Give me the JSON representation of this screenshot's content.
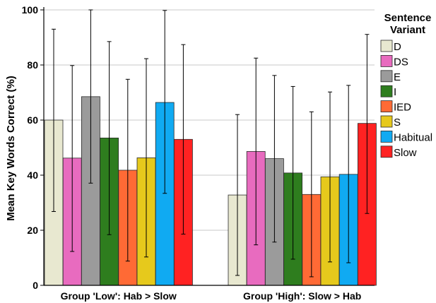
{
  "chart_data": {
    "type": "bar",
    "ylabel": "Mean Key Words Correct (%)",
    "xlabel": "",
    "ylim": [
      0,
      100
    ],
    "yticks": [
      0,
      20,
      40,
      60,
      80,
      100
    ],
    "grid": "horizontal",
    "legend_title": "Sentence Variant",
    "legend_placement": "right",
    "categories": [
      "Group 'Low': Hab > Slow",
      "Group 'High': Slow > Hab"
    ],
    "series": [
      {
        "name": "D",
        "color": "#e8e8d0",
        "values": [
          60.0,
          32.8
        ],
        "error_low": [
          26.8,
          3.6
        ],
        "error_high": [
          93.0,
          62.0
        ]
      },
      {
        "name": "DS",
        "color": "#e86bbf",
        "values": [
          46.2,
          48.6
        ],
        "error_low": [
          12.3,
          14.7
        ],
        "error_high": [
          79.8,
          82.5
        ]
      },
      {
        "name": "E",
        "color": "#9b9b9b",
        "values": [
          68.5,
          46.0
        ],
        "error_low": [
          37.1,
          15.7
        ],
        "error_high": [
          100.0,
          76.2
        ]
      },
      {
        "name": "I",
        "color": "#2e7d1e",
        "values": [
          53.5,
          40.8
        ],
        "error_low": [
          18.4,
          9.5
        ],
        "error_high": [
          88.5,
          72.2
        ]
      },
      {
        "name": "IED",
        "color": "#ff6a35",
        "values": [
          41.8,
          33.0
        ],
        "error_low": [
          8.8,
          3.1
        ],
        "error_high": [
          74.8,
          63.0
        ]
      },
      {
        "name": "S",
        "color": "#e6c91c",
        "values": [
          46.3,
          39.4
        ],
        "error_low": [
          10.3,
          8.5
        ],
        "error_high": [
          82.3,
          70.2
        ]
      },
      {
        "name": "Habitual",
        "color": "#10aaf2",
        "values": [
          66.4,
          40.3
        ],
        "error_low": [
          33.4,
          8.2
        ],
        "error_high": [
          99.8,
          72.6
        ]
      },
      {
        "name": "Slow",
        "color": "#ff2222",
        "values": [
          53.0,
          58.8
        ],
        "error_low": [
          18.6,
          26.1
        ],
        "error_high": [
          87.4,
          91.1
        ]
      }
    ]
  }
}
